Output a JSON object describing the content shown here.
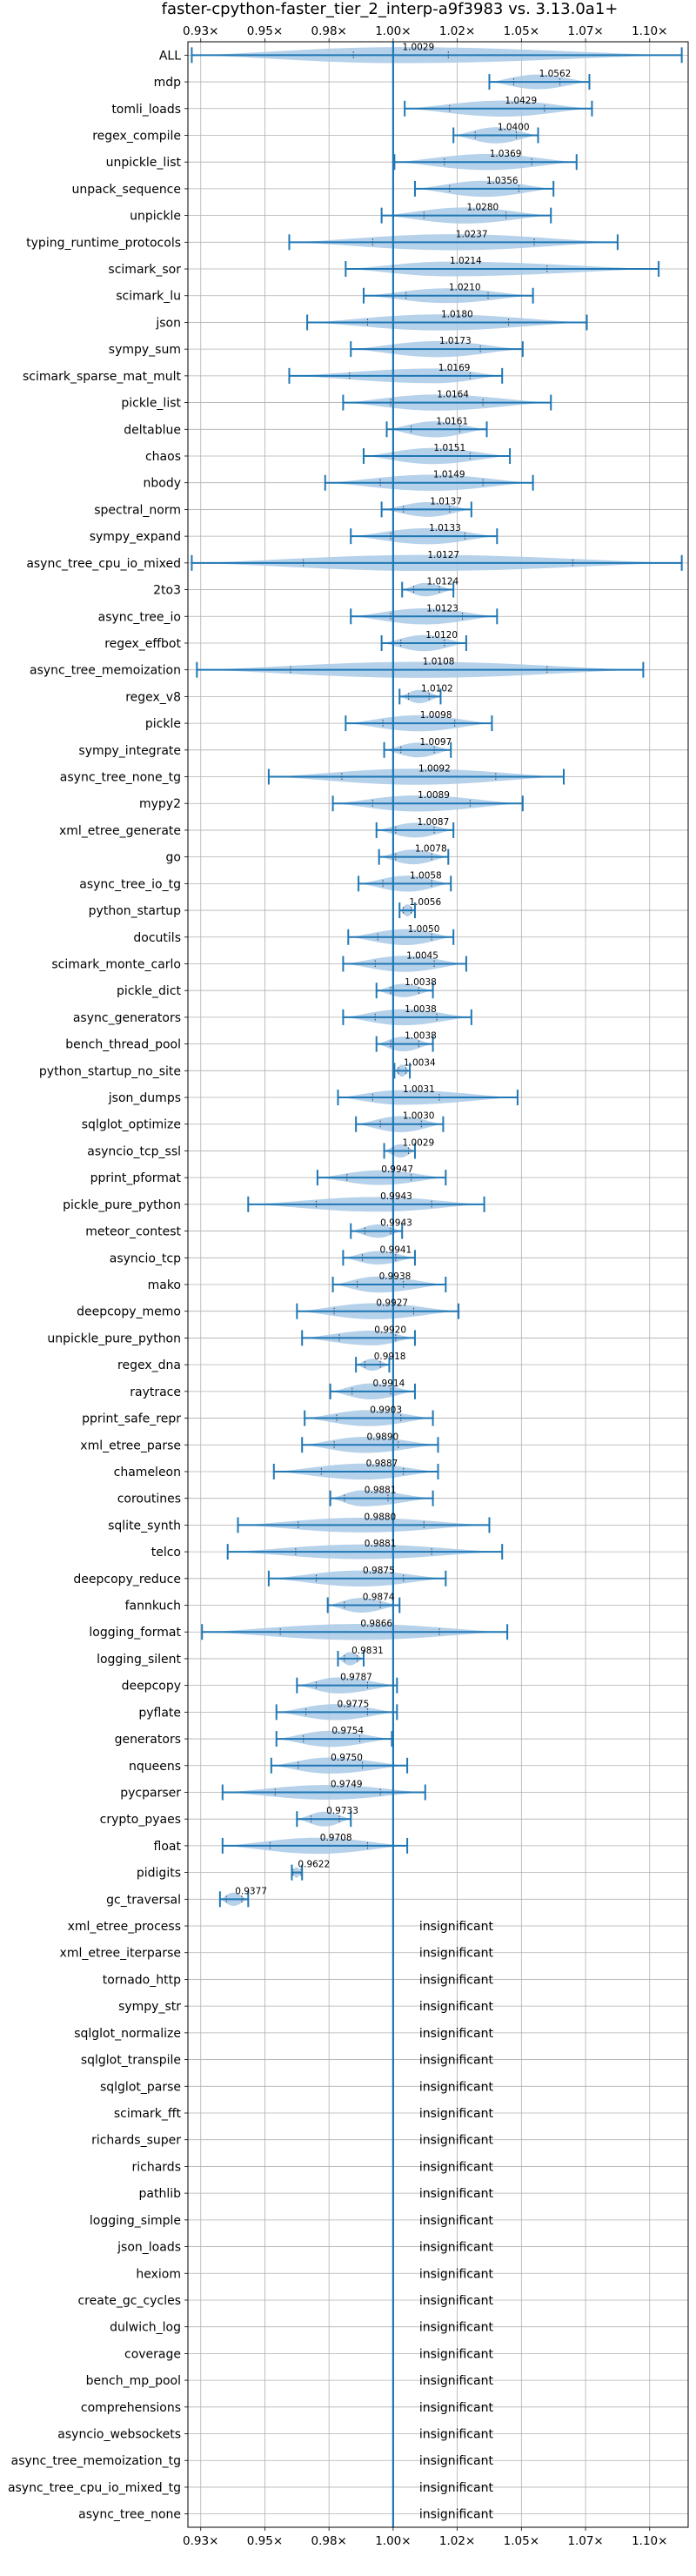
{
  "chart_data": {
    "type": "violin",
    "title": "faster-cpython-faster_tier_2_interp-a9f3983 vs. 3.13.0a1+",
    "xlim": [
      0.92,
      1.115
    ],
    "x_ticks": [
      {
        "value": 0.925,
        "label": "0.93×"
      },
      {
        "value": 0.95,
        "label": "0.95×"
      },
      {
        "value": 0.975,
        "label": "0.98×"
      },
      {
        "value": 1.0,
        "label": "1.00×"
      },
      {
        "value": 1.025,
        "label": "1.02×"
      },
      {
        "value": 1.05,
        "label": "1.05×"
      },
      {
        "value": 1.075,
        "label": "1.07×"
      },
      {
        "value": 1.1,
        "label": "1.10×"
      }
    ],
    "reference_line": 1.0,
    "grid": true,
    "colors": {
      "violin": "#a9c9e6",
      "line": "#1f77b4",
      "grid": "#b0b0b0"
    },
    "insignificant_label": "insignificant",
    "benchmarks": [
      {
        "name": "ALL",
        "value": 1.0029,
        "label": "1.0029",
        "min": 0.9215,
        "max": 1.1125,
        "q1": 0.9845,
        "q3": 1.0215,
        "vmin": 0.998,
        "vmax": 1.008,
        "w": 0.6
      },
      {
        "name": "mdp",
        "value": 1.0562,
        "label": "1.0562",
        "min": 1.0375,
        "max": 1.0765,
        "q1": 1.047,
        "q3": 1.065,
        "w": 0.55
      },
      {
        "name": "tomli_loads",
        "value": 1.0429,
        "label": "1.0429",
        "min": 1.0045,
        "max": 1.0775,
        "q1": 1.022,
        "q3": 1.059,
        "w": 0.6
      },
      {
        "name": "regex_compile",
        "value": 1.04,
        "label": "1.0400",
        "min": 1.0235,
        "max": 1.0565,
        "q1": 1.032,
        "q3": 1.048,
        "w": 0.6
      },
      {
        "name": "unpickle_list",
        "value": 1.0369,
        "label": "1.0369",
        "min": 1.0005,
        "max": 1.0715,
        "q1": 1.02,
        "q3": 1.054,
        "w": 0.6
      },
      {
        "name": "unpack_sequence",
        "value": 1.0356,
        "label": "1.0356",
        "min": 1.0085,
        "max": 1.0625,
        "q1": 1.022,
        "q3": 1.049,
        "w": 0.6
      },
      {
        "name": "unpickle",
        "value": 1.028,
        "label": "1.0280",
        "min": 0.9955,
        "max": 1.0615,
        "q1": 1.012,
        "q3": 1.044,
        "w": 0.6
      },
      {
        "name": "typing_runtime_protocols",
        "value": 1.0237,
        "label": "1.0237",
        "min": 0.9595,
        "max": 1.0875,
        "q1": 0.992,
        "q3": 1.055,
        "w": 0.6
      },
      {
        "name": "scimark_sor",
        "value": 1.0214,
        "label": "1.0214",
        "min": 0.9815,
        "max": 1.1035,
        "q1": 1.0,
        "q3": 1.06,
        "w": 0.55
      },
      {
        "name": "scimark_lu",
        "value": 1.021,
        "label": "1.0210",
        "min": 0.9885,
        "max": 1.0545,
        "q1": 1.005,
        "q3": 1.037,
        "w": 0.55
      },
      {
        "name": "json",
        "value": 1.018,
        "label": "1.0180",
        "min": 0.9665,
        "max": 1.0755,
        "q1": 0.99,
        "q3": 1.045,
        "w": 0.6
      },
      {
        "name": "sympy_sum",
        "value": 1.0173,
        "label": "1.0173",
        "min": 0.9835,
        "max": 1.0505,
        "q1": 1.0,
        "q3": 1.034,
        "w": 0.6
      },
      {
        "name": "scimark_sparse_mat_mult",
        "value": 1.0169,
        "label": "1.0169",
        "min": 0.9595,
        "max": 1.0425,
        "q1": 0.983,
        "q3": 1.03,
        "w": 0.55
      },
      {
        "name": "pickle_list",
        "value": 1.0164,
        "label": "1.0164",
        "min": 0.9805,
        "max": 1.0615,
        "q1": 0.999,
        "q3": 1.035,
        "w": 0.6
      },
      {
        "name": "deltablue",
        "value": 1.0161,
        "label": "1.0161",
        "min": 0.9975,
        "max": 1.0365,
        "q1": 1.007,
        "q3": 1.026,
        "w": 0.6
      },
      {
        "name": "chaos",
        "value": 1.0151,
        "label": "1.0151",
        "min": 0.9885,
        "max": 1.0455,
        "q1": 1.0,
        "q3": 1.03,
        "w": 0.6
      },
      {
        "name": "nbody",
        "value": 1.0149,
        "label": "1.0149",
        "min": 0.9735,
        "max": 1.0545,
        "q1": 0.995,
        "q3": 1.035,
        "w": 0.6
      },
      {
        "name": "spectral_norm",
        "value": 1.0137,
        "label": "1.0137",
        "min": 0.9955,
        "max": 1.0305,
        "q1": 1.004,
        "q3": 1.022,
        "w": 0.55
      },
      {
        "name": "sympy_expand",
        "value": 1.0133,
        "label": "1.0133",
        "min": 0.9835,
        "max": 1.0405,
        "q1": 0.999,
        "q3": 1.028,
        "w": 0.6
      },
      {
        "name": "async_tree_cpu_io_mixed",
        "value": 1.0127,
        "label": "1.0127",
        "min": 0.9215,
        "max": 1.1125,
        "q1": 0.965,
        "q3": 1.07,
        "w": 0.6
      },
      {
        "name": "2to3",
        "value": 1.0124,
        "label": "1.0124",
        "min": 1.0035,
        "max": 1.0235,
        "q1": 1.008,
        "q3": 1.018,
        "w": 0.5
      },
      {
        "name": "async_tree_io",
        "value": 1.0123,
        "label": "1.0123",
        "min": 0.9835,
        "max": 1.0405,
        "q1": 0.999,
        "q3": 1.027,
        "w": 0.6
      },
      {
        "name": "regex_effbot",
        "value": 1.012,
        "label": "1.0120",
        "min": 0.9955,
        "max": 1.0285,
        "q1": 1.003,
        "q3": 1.02,
        "w": 0.6
      },
      {
        "name": "async_tree_memoization",
        "value": 1.0108,
        "label": "1.0108",
        "min": 0.9235,
        "max": 1.0975,
        "q1": 0.96,
        "q3": 1.06,
        "w": 0.6
      },
      {
        "name": "regex_v8",
        "value": 1.0102,
        "label": "1.0102",
        "min": 1.0025,
        "max": 1.0185,
        "q1": 1.006,
        "q3": 1.014,
        "w": 0.5
      },
      {
        "name": "pickle",
        "value": 1.0098,
        "label": "1.0098",
        "min": 0.9815,
        "max": 1.0385,
        "q1": 0.996,
        "q3": 1.024,
        "w": 0.6
      },
      {
        "name": "sympy_integrate",
        "value": 1.0097,
        "label": "1.0097",
        "min": 0.9965,
        "max": 1.0225,
        "q1": 1.003,
        "q3": 1.016,
        "w": 0.55
      },
      {
        "name": "async_tree_none_tg",
        "value": 1.0092,
        "label": "1.0092",
        "min": 0.9515,
        "max": 1.0665,
        "q1": 0.98,
        "q3": 1.04,
        "w": 0.6
      },
      {
        "name": "mypy2",
        "value": 1.0089,
        "label": "1.0089",
        "min": 0.9765,
        "max": 1.0505,
        "q1": 0.992,
        "q3": 1.03,
        "w": 0.6
      },
      {
        "name": "xml_etree_generate",
        "value": 1.0087,
        "label": "1.0087",
        "min": 0.9935,
        "max": 1.0235,
        "q1": 1.001,
        "q3": 1.016,
        "w": 0.55
      },
      {
        "name": "go",
        "value": 1.0078,
        "label": "1.0078",
        "min": 0.9945,
        "max": 1.0215,
        "q1": 1.001,
        "q3": 1.015,
        "w": 0.55
      },
      {
        "name": "async_tree_io_tg",
        "value": 1.0058,
        "label": "1.0058",
        "min": 0.9865,
        "max": 1.0225,
        "q1": 0.996,
        "q3": 1.015,
        "w": 0.6
      },
      {
        "name": "python_startup",
        "value": 1.0056,
        "label": "1.0056",
        "min": 1.0025,
        "max": 1.0085,
        "q1": 1.004,
        "q3": 1.007,
        "w": 0.45
      },
      {
        "name": "docutils",
        "value": 1.005,
        "label": "1.0050",
        "min": 0.9825,
        "max": 1.0235,
        "q1": 0.994,
        "q3": 1.015,
        "w": 0.6
      },
      {
        "name": "scimark_monte_carlo",
        "value": 1.0045,
        "label": "1.0045",
        "min": 0.9805,
        "max": 1.0285,
        "q1": 0.993,
        "q3": 1.016,
        "w": 0.6
      },
      {
        "name": "pickle_dict",
        "value": 1.0038,
        "label": "1.0038",
        "min": 0.9935,
        "max": 1.0155,
        "q1": 0.999,
        "q3": 1.01,
        "w": 0.5
      },
      {
        "name": "async_generators",
        "value": 1.0038,
        "label": "1.0038",
        "min": 0.9805,
        "max": 1.0305,
        "q1": 0.993,
        "q3": 1.017,
        "w": 0.6
      },
      {
        "name": "bench_thread_pool",
        "value": 1.0038,
        "label": "1.0038",
        "min": 0.9935,
        "max": 1.0155,
        "q1": 0.999,
        "q3": 1.01,
        "w": 0.55
      },
      {
        "name": "python_startup_no_site",
        "value": 1.0034,
        "label": "1.0034",
        "min": 1.0005,
        "max": 1.0065,
        "q1": 1.002,
        "q3": 1.005,
        "w": 0.45
      },
      {
        "name": "json_dumps",
        "value": 1.0031,
        "label": "1.0031",
        "min": 0.9785,
        "max": 1.0485,
        "q1": 0.992,
        "q3": 1.018,
        "w": 0.55
      },
      {
        "name": "sqlglot_optimize",
        "value": 1.003,
        "label": "1.0030",
        "min": 0.9855,
        "max": 1.0195,
        "q1": 0.995,
        "q3": 1.011,
        "w": 0.6
      },
      {
        "name": "asyncio_tcp_ssl",
        "value": 1.0029,
        "label": "1.0029",
        "min": 0.9965,
        "max": 1.0085,
        "q1": 1.0,
        "q3": 1.006,
        "w": 0.5
      },
      {
        "name": "pprint_pformat",
        "value": 0.9947,
        "label": "0.9947",
        "min": 0.9705,
        "max": 1.0205,
        "q1": 0.982,
        "q3": 1.007,
        "w": 0.55
      },
      {
        "name": "pickle_pure_python",
        "value": 0.9943,
        "label": "0.9943",
        "min": 0.9435,
        "max": 1.0355,
        "q1": 0.97,
        "q3": 1.015,
        "w": 0.55
      },
      {
        "name": "meteor_contest",
        "value": 0.9943,
        "label": "0.9943",
        "min": 0.9835,
        "max": 1.0035,
        "q1": 0.989,
        "q3": 0.999,
        "w": 0.5
      },
      {
        "name": "asyncio_tcp",
        "value": 0.9941,
        "label": "0.9941",
        "min": 0.9805,
        "max": 1.0085,
        "q1": 0.988,
        "q3": 1.001,
        "w": 0.5
      },
      {
        "name": "mako",
        "value": 0.9938,
        "label": "0.9938",
        "min": 0.9765,
        "max": 1.0205,
        "q1": 0.986,
        "q3": 1.004,
        "w": 0.6
      },
      {
        "name": "deepcopy_memo",
        "value": 0.9927,
        "label": "0.9927",
        "min": 0.9625,
        "max": 1.0255,
        "q1": 0.977,
        "q3": 1.008,
        "w": 0.6
      },
      {
        "name": "unpickle_pure_python",
        "value": 0.992,
        "label": "0.9920",
        "min": 0.9645,
        "max": 1.0085,
        "q1": 0.979,
        "q3": 1.001,
        "w": 0.55
      },
      {
        "name": "regex_dna",
        "value": 0.9918,
        "label": "0.9918",
        "min": 0.9855,
        "max": 0.9985,
        "q1": 0.989,
        "q3": 0.995,
        "w": 0.45
      },
      {
        "name": "raytrace",
        "value": 0.9914,
        "label": "0.9914",
        "min": 0.9755,
        "max": 1.0085,
        "q1": 0.984,
        "q3": 0.999,
        "w": 0.6
      },
      {
        "name": "pprint_safe_repr",
        "value": 0.9903,
        "label": "0.9903",
        "min": 0.9655,
        "max": 1.0155,
        "q1": 0.978,
        "q3": 1.003,
        "w": 0.6
      },
      {
        "name": "xml_etree_parse",
        "value": 0.989,
        "label": "0.9890",
        "min": 0.9645,
        "max": 1.0175,
        "q1": 0.977,
        "q3": 1.002,
        "w": 0.6
      },
      {
        "name": "chameleon",
        "value": 0.9887,
        "label": "0.9887",
        "min": 0.9535,
        "max": 1.0175,
        "q1": 0.972,
        "q3": 1.004,
        "w": 0.6
      },
      {
        "name": "coroutines",
        "value": 0.9881,
        "label": "0.9881",
        "min": 0.9755,
        "max": 1.0155,
        "q1": 0.981,
        "q3": 0.998,
        "w": 0.6
      },
      {
        "name": "sqlite_synth",
        "value": 0.988,
        "label": "0.9880",
        "min": 0.9395,
        "max": 1.0375,
        "q1": 0.963,
        "q3": 1.012,
        "w": 0.55
      },
      {
        "name": "telco",
        "value": 0.9881,
        "label": "0.9881",
        "min": 0.9355,
        "max": 1.0425,
        "q1": 0.962,
        "q3": 1.015,
        "w": 0.55
      },
      {
        "name": "deepcopy_reduce",
        "value": 0.9875,
        "label": "0.9875",
        "min": 0.9515,
        "max": 1.0205,
        "q1": 0.97,
        "q3": 1.004,
        "w": 0.6
      },
      {
        "name": "fannkuch",
        "value": 0.9874,
        "label": "0.9874",
        "min": 0.9745,
        "max": 1.0025,
        "q1": 0.981,
        "q3": 0.995,
        "w": 0.55
      },
      {
        "name": "logging_format",
        "value": 0.9866,
        "label": "0.9866",
        "min": 0.9255,
        "max": 1.0445,
        "q1": 0.956,
        "q3": 1.018,
        "w": 0.6
      },
      {
        "name": "logging_silent",
        "value": 0.9831,
        "label": "0.9831",
        "min": 0.9785,
        "max": 0.9885,
        "q1": 0.981,
        "q3": 0.986,
        "w": 0.5
      },
      {
        "name": "deepcopy",
        "value": 0.9787,
        "label": "0.9787",
        "min": 0.9625,
        "max": 1.0015,
        "q1": 0.97,
        "q3": 0.99,
        "w": 0.6
      },
      {
        "name": "pyflate",
        "value": 0.9775,
        "label": "0.9775",
        "min": 0.9545,
        "max": 1.0015,
        "q1": 0.966,
        "q3": 0.99,
        "w": 0.6
      },
      {
        "name": "generators",
        "value": 0.9754,
        "label": "0.9754",
        "min": 0.9545,
        "max": 0.9995,
        "q1": 0.965,
        "q3": 0.987,
        "w": 0.6
      },
      {
        "name": "nqueens",
        "value": 0.975,
        "label": "0.9750",
        "min": 0.9525,
        "max": 1.0055,
        "q1": 0.963,
        "q3": 0.988,
        "w": 0.6
      },
      {
        "name": "pycparser",
        "value": 0.9749,
        "label": "0.9749",
        "min": 0.9335,
        "max": 1.0125,
        "q1": 0.954,
        "q3": 0.995,
        "w": 0.55
      },
      {
        "name": "crypto_pyaes",
        "value": 0.9733,
        "label": "0.9733",
        "min": 0.9625,
        "max": 0.9835,
        "q1": 0.968,
        "q3": 0.979,
        "w": 0.55
      },
      {
        "name": "float",
        "value": 0.9708,
        "label": "0.9708",
        "min": 0.9335,
        "max": 1.0055,
        "q1": 0.952,
        "q3": 0.99,
        "w": 0.6
      },
      {
        "name": "pidigits",
        "value": 0.9622,
        "label": "0.9622",
        "min": 0.9605,
        "max": 0.9645,
        "q1": 0.961,
        "q3": 0.964,
        "w": 0.4
      },
      {
        "name": "gc_traversal",
        "value": 0.9377,
        "label": "0.9377",
        "min": 0.9325,
        "max": 0.9435,
        "q1": 0.935,
        "q3": 0.941,
        "w": 0.5
      },
      {
        "name": "xml_etree_process",
        "insignificant": true
      },
      {
        "name": "xml_etree_iterparse",
        "insignificant": true
      },
      {
        "name": "tornado_http",
        "insignificant": true
      },
      {
        "name": "sympy_str",
        "insignificant": true
      },
      {
        "name": "sqlglot_normalize",
        "insignificant": true
      },
      {
        "name": "sqlglot_transpile",
        "insignificant": true
      },
      {
        "name": "sqlglot_parse",
        "insignificant": true
      },
      {
        "name": "scimark_fft",
        "insignificant": true
      },
      {
        "name": "richards_super",
        "insignificant": true
      },
      {
        "name": "richards",
        "insignificant": true
      },
      {
        "name": "pathlib",
        "insignificant": true
      },
      {
        "name": "logging_simple",
        "insignificant": true
      },
      {
        "name": "json_loads",
        "insignificant": true
      },
      {
        "name": "hexiom",
        "insignificant": true
      },
      {
        "name": "create_gc_cycles",
        "insignificant": true
      },
      {
        "name": "dulwich_log",
        "insignificant": true
      },
      {
        "name": "coverage",
        "insignificant": true
      },
      {
        "name": "bench_mp_pool",
        "insignificant": true
      },
      {
        "name": "comprehensions",
        "insignificant": true
      },
      {
        "name": "asyncio_websockets",
        "insignificant": true
      },
      {
        "name": "async_tree_memoization_tg",
        "insignificant": true
      },
      {
        "name": "async_tree_cpu_io_mixed_tg",
        "insignificant": true
      },
      {
        "name": "async_tree_none",
        "insignificant": true
      }
    ]
  }
}
